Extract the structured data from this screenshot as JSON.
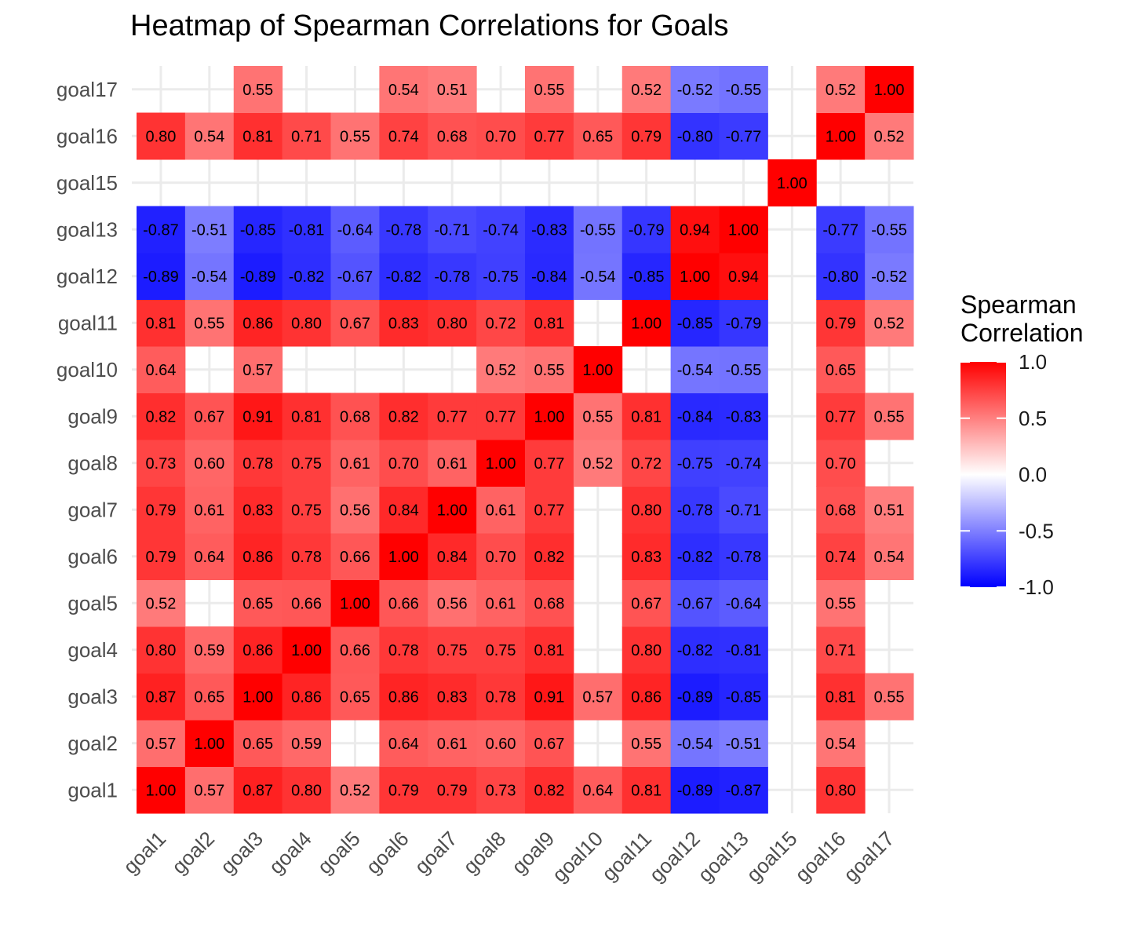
{
  "chart_data": {
    "type": "heatmap",
    "title": "Heatmap of Spearman Correlations for Goals",
    "xlabel": "",
    "ylabel": "",
    "x_categories": [
      "goal1",
      "goal2",
      "goal3",
      "goal4",
      "goal5",
      "goal6",
      "goal7",
      "goal8",
      "goal9",
      "goal10",
      "goal11",
      "goal12",
      "goal13",
      "goal15",
      "goal16",
      "goal17"
    ],
    "y_categories": [
      "goal1",
      "goal2",
      "goal3",
      "goal4",
      "goal5",
      "goal6",
      "goal7",
      "goal8",
      "goal9",
      "goal10",
      "goal11",
      "goal12",
      "goal13",
      "goal15",
      "goal16",
      "goal17"
    ],
    "values": [
      [
        1.0,
        0.57,
        0.87,
        0.8,
        0.52,
        0.79,
        0.79,
        0.73,
        0.82,
        0.64,
        0.81,
        -0.89,
        -0.87,
        null,
        0.8,
        null
      ],
      [
        0.57,
        1.0,
        0.65,
        0.59,
        null,
        0.64,
        0.61,
        0.6,
        0.67,
        null,
        0.55,
        -0.54,
        -0.51,
        null,
        0.54,
        null
      ],
      [
        0.87,
        0.65,
        1.0,
        0.86,
        0.65,
        0.86,
        0.83,
        0.78,
        0.91,
        0.57,
        0.86,
        -0.89,
        -0.85,
        null,
        0.81,
        0.55
      ],
      [
        0.8,
        0.59,
        0.86,
        1.0,
        0.66,
        0.78,
        0.75,
        0.75,
        0.81,
        null,
        0.8,
        -0.82,
        -0.81,
        null,
        0.71,
        null
      ],
      [
        0.52,
        null,
        0.65,
        0.66,
        1.0,
        0.66,
        0.56,
        0.61,
        0.68,
        null,
        0.67,
        -0.67,
        -0.64,
        null,
        0.55,
        null
      ],
      [
        0.79,
        0.64,
        0.86,
        0.78,
        0.66,
        1.0,
        0.84,
        0.7,
        0.82,
        null,
        0.83,
        -0.82,
        -0.78,
        null,
        0.74,
        0.54
      ],
      [
        0.79,
        0.61,
        0.83,
        0.75,
        0.56,
        0.84,
        1.0,
        0.61,
        0.77,
        null,
        0.8,
        -0.78,
        -0.71,
        null,
        0.68,
        0.51
      ],
      [
        0.73,
        0.6,
        0.78,
        0.75,
        0.61,
        0.7,
        0.61,
        1.0,
        0.77,
        0.52,
        0.72,
        -0.75,
        -0.74,
        null,
        0.7,
        null
      ],
      [
        0.82,
        0.67,
        0.91,
        0.81,
        0.68,
        0.82,
        0.77,
        0.77,
        1.0,
        0.55,
        0.81,
        -0.84,
        -0.83,
        null,
        0.77,
        0.55
      ],
      [
        0.64,
        null,
        0.57,
        null,
        null,
        null,
        null,
        0.52,
        0.55,
        1.0,
        null,
        -0.54,
        -0.55,
        null,
        0.65,
        null
      ],
      [
        0.81,
        0.55,
        0.86,
        0.8,
        0.67,
        0.83,
        0.8,
        0.72,
        0.81,
        null,
        1.0,
        -0.85,
        -0.79,
        null,
        0.79,
        0.52
      ],
      [
        -0.89,
        -0.54,
        -0.89,
        -0.82,
        -0.67,
        -0.82,
        -0.78,
        -0.75,
        -0.84,
        -0.54,
        -0.85,
        1.0,
        0.94,
        null,
        -0.8,
        -0.52
      ],
      [
        -0.87,
        -0.51,
        -0.85,
        -0.81,
        -0.64,
        -0.78,
        -0.71,
        -0.74,
        -0.83,
        -0.55,
        -0.79,
        0.94,
        1.0,
        null,
        -0.77,
        -0.55
      ],
      [
        null,
        null,
        null,
        null,
        null,
        null,
        null,
        null,
        null,
        null,
        null,
        null,
        null,
        1.0,
        null,
        null
      ],
      [
        0.8,
        0.54,
        0.81,
        0.71,
        0.55,
        0.74,
        0.68,
        0.7,
        0.77,
        0.65,
        0.79,
        -0.8,
        -0.77,
        null,
        1.0,
        0.52
      ],
      [
        null,
        null,
        0.55,
        null,
        null,
        0.54,
        0.51,
        null,
        0.55,
        null,
        0.52,
        -0.52,
        -0.55,
        null,
        0.52,
        1.0
      ]
    ],
    "value_range": [
      -1,
      1
    ],
    "color_scale": {
      "low": "#0000ff",
      "mid": "#ffffff",
      "high": "#ff0000"
    },
    "grid": true,
    "legend": {
      "title_lines": [
        "Spearman",
        "Correlation"
      ],
      "ticks": [
        1.0,
        0.5,
        0.0,
        -0.5,
        -1.0
      ],
      "tick_labels": [
        "1.0",
        "0.5",
        "0.0",
        "-0.5",
        "-1.0"
      ],
      "placement": "right"
    }
  }
}
